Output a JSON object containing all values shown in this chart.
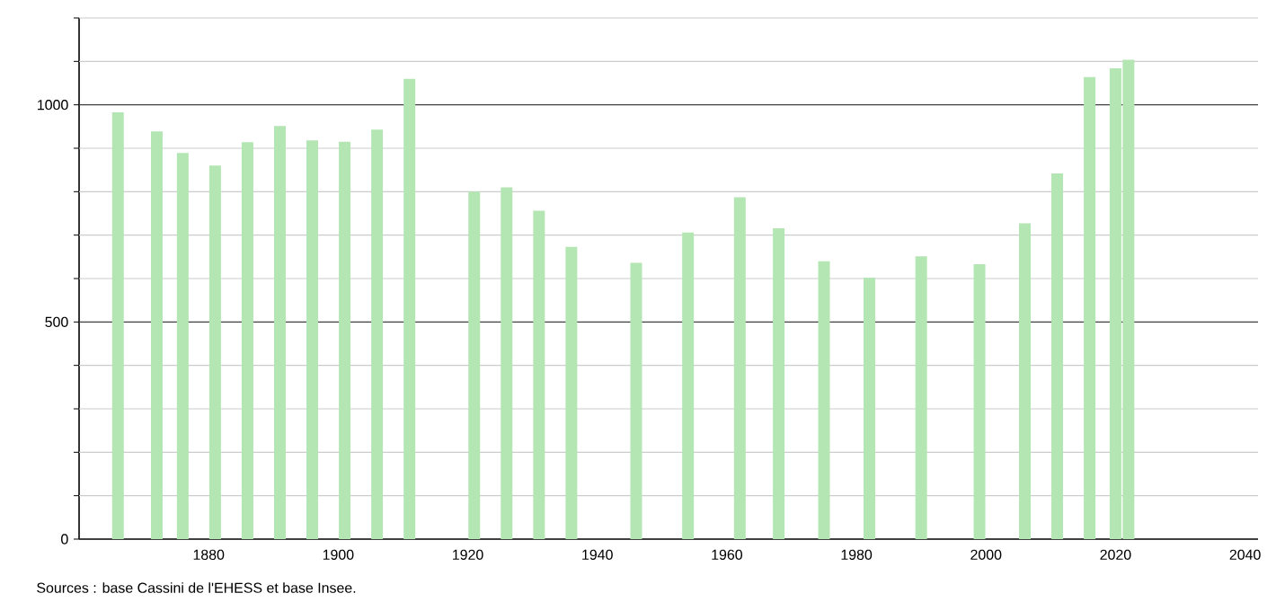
{
  "chart_data": {
    "type": "bar",
    "color": "#b3e6b3",
    "x": [
      1866,
      1872,
      1876,
      1881,
      1886,
      1891,
      1896,
      1901,
      1906,
      1911,
      1921,
      1926,
      1931,
      1936,
      1946,
      1954,
      1962,
      1968,
      1975,
      1982,
      1990,
      1999,
      2006,
      2011,
      2016,
      2020,
      2022
    ],
    "values": [
      983,
      939,
      889,
      860,
      914,
      951,
      918,
      915,
      943,
      1060,
      800,
      810,
      756,
      673,
      636,
      706,
      787,
      716,
      640,
      602,
      651,
      633,
      727,
      842,
      1064,
      1084,
      1104
    ],
    "xlim": [
      1860,
      2042
    ],
    "ylim": [
      0,
      1200
    ],
    "xticks": [
      1880,
      1900,
      1920,
      1940,
      1960,
      1980,
      2000,
      2020,
      2040
    ],
    "yticks": [
      0,
      {
        "value": 100,
        "label": null
      },
      {
        "value": 200,
        "label": null
      },
      {
        "value": 300,
        "label": null
      },
      {
        "value": 400,
        "label": null
      },
      500,
      {
        "value": 600,
        "label": null
      },
      {
        "value": 700,
        "label": null
      },
      {
        "value": 800,
        "label": null
      },
      {
        "value": 900,
        "label": null
      },
      1000,
      {
        "value": 1100,
        "label": null
      },
      {
        "value": 1200,
        "label": null
      }
    ],
    "grid": "y",
    "annotations": [
      "Sources : base Cassini de l'EHESS et base Insee."
    ]
  }
}
